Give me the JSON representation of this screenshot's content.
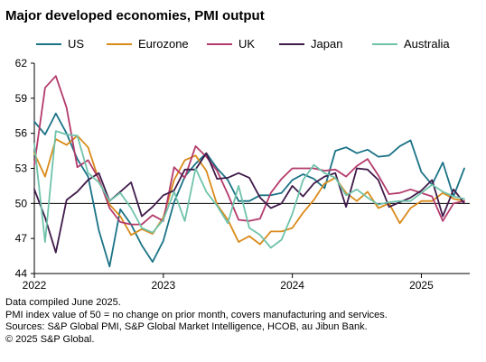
{
  "chart_data": {
    "type": "line",
    "title": "Major developed economies, PMI output",
    "xlabel": "",
    "ylabel": "",
    "ylim": [
      44,
      62
    ],
    "yticks": [
      44,
      47,
      50,
      53,
      56,
      59,
      62
    ],
    "xticks": [
      {
        "label": "2022",
        "x": 0
      },
      {
        "label": "2023",
        "x": 12
      },
      {
        "label": "2024",
        "x": 24
      },
      {
        "label": "2025",
        "x": 36
      }
    ],
    "xrange": [
      0,
      40.5
    ],
    "reference_line": 50,
    "grid": false,
    "legend": "top",
    "series": [
      {
        "name": "US",
        "color": "#1b7386",
        "values": [
          57.0,
          55.9,
          57.7,
          56.0,
          53.8,
          52.3,
          47.7,
          44.6,
          49.5,
          48.2,
          46.4,
          45.0,
          46.8,
          50.1,
          52.3,
          53.4,
          54.3,
          53.0,
          52.0,
          50.2,
          50.2,
          50.7,
          50.7,
          50.9,
          52.0,
          52.5,
          52.1,
          51.3,
          54.5,
          54.8,
          54.3,
          54.6,
          54.0,
          54.1,
          54.9,
          55.4,
          52.7,
          51.6,
          53.5,
          50.6,
          53.0
        ]
      },
      {
        "name": "Eurozone",
        "color": "#d98a19",
        "values": [
          54.3,
          52.3,
          55.5,
          55.0,
          55.8,
          54.8,
          52.0,
          49.9,
          48.9,
          47.3,
          47.8,
          47.4,
          48.8,
          52.0,
          53.7,
          54.1,
          52.8,
          49.9,
          48.6,
          46.7,
          47.2,
          46.5,
          47.6,
          47.6,
          47.9,
          49.2,
          50.3,
          51.7,
          52.2,
          50.9,
          50.2,
          51.0,
          49.6,
          50.0,
          48.3,
          49.6,
          50.2,
          50.2,
          50.9,
          50.4,
          50.2
        ]
      },
      {
        "name": "UK",
        "color": "#b33b6b",
        "values": [
          53.3,
          59.9,
          60.9,
          58.2,
          53.1,
          53.7,
          52.1,
          49.6,
          48.4,
          48.2,
          48.2,
          49.0,
          48.5,
          53.1,
          52.2,
          54.9,
          54.0,
          52.8,
          50.8,
          48.6,
          48.5,
          48.7,
          50.9,
          52.1,
          53.0,
          53.0,
          53.0,
          52.8,
          52.9,
          52.3,
          53.2,
          53.8,
          52.4,
          50.8,
          50.9,
          51.2,
          50.9,
          50.6,
          48.5,
          50.0,
          50.2
        ]
      },
      {
        "name": "Japan",
        "color": "#3f1a4a",
        "values": [
          51.2,
          48.8,
          45.8,
          50.3,
          51.0,
          52.0,
          52.6,
          50.2,
          51.0,
          51.8,
          48.9,
          49.7,
          50.7,
          51.1,
          52.9,
          52.9,
          54.3,
          52.1,
          52.2,
          52.6,
          52.2,
          50.5,
          49.6,
          50.0,
          51.5,
          50.6,
          51.7,
          52.3,
          52.6,
          49.7,
          53.0,
          52.9,
          52.0,
          49.7,
          50.1,
          50.5,
          51.1,
          52.0,
          48.9,
          51.2,
          50.0
        ]
      },
      {
        "name": "Australia",
        "color": "#6fc3ab",
        "values": [
          55.1,
          46.7,
          56.2,
          55.9,
          55.8,
          52.6,
          51.8,
          50.2,
          50.9,
          49.6,
          47.9,
          47.5,
          48.6,
          51.0,
          48.5,
          53.0,
          51.0,
          49.8,
          48.3,
          51.5,
          47.9,
          47.3,
          46.2,
          46.9,
          49.1,
          52.0,
          53.3,
          52.6,
          52.2,
          50.7,
          51.2,
          50.5,
          49.9,
          50.1,
          50.2,
          50.2,
          50.9,
          51.6,
          51.0,
          50.6,
          50.4
        ]
      }
    ]
  },
  "footer": {
    "line1": "Data compiled June 2025.",
    "line2": "PMI index value of 50 = no change on prior month, covers manufacturing and services.",
    "line3": "Sources: S&P Global PMI, S&P Global Market Intelligence, HCOB, au Jibun Bank.",
    "line4": "© 2025 S&P Global."
  }
}
